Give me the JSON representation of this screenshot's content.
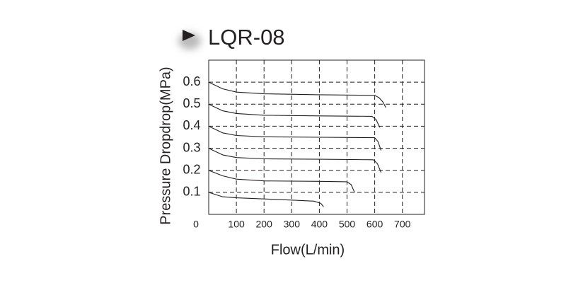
{
  "chart_data": {
    "type": "line",
    "title": "LQR-08",
    "x_label": "Flow(L/min)",
    "y_label": "Pressure Dropdrop(MPa)",
    "xlim": [
      0,
      780
    ],
    "xticks": [
      0,
      100,
      200,
      300,
      400,
      500,
      600,
      700
    ],
    "ylim": [
      0,
      0.7
    ],
    "yticks": [
      0.1,
      0.2,
      0.3,
      0.4,
      0.5,
      0.6
    ],
    "grid": true,
    "color": "#231f20",
    "series": [
      {
        "x": [
          0,
          50,
          100,
          200,
          400,
          600,
          615,
          630,
          640
        ],
        "values": [
          0.6,
          0.57,
          0.555,
          0.547,
          0.543,
          0.54,
          0.53,
          0.51,
          0.485
        ]
      },
      {
        "x": [
          0,
          50,
          100,
          200,
          400,
          590,
          605,
          618
        ],
        "values": [
          0.5,
          0.47,
          0.458,
          0.45,
          0.447,
          0.445,
          0.43,
          0.395
        ]
      },
      {
        "x": [
          0,
          50,
          100,
          200,
          400,
          600,
          612,
          623
        ],
        "values": [
          0.4,
          0.37,
          0.358,
          0.352,
          0.35,
          0.348,
          0.33,
          0.29
        ]
      },
      {
        "x": [
          0,
          50,
          100,
          200,
          400,
          595,
          610,
          623
        ],
        "values": [
          0.3,
          0.27,
          0.258,
          0.252,
          0.25,
          0.248,
          0.23,
          0.19
        ]
      },
      {
        "x": [
          0,
          50,
          100,
          200,
          400,
          500,
          515,
          527
        ],
        "values": [
          0.2,
          0.175,
          0.16,
          0.152,
          0.15,
          0.148,
          0.135,
          0.1
        ]
      },
      {
        "x": [
          0,
          50,
          100,
          200,
          300,
          380,
          405,
          415
        ],
        "values": [
          0.1,
          0.08,
          0.075,
          0.07,
          0.065,
          0.06,
          0.05,
          0.035
        ]
      }
    ]
  }
}
